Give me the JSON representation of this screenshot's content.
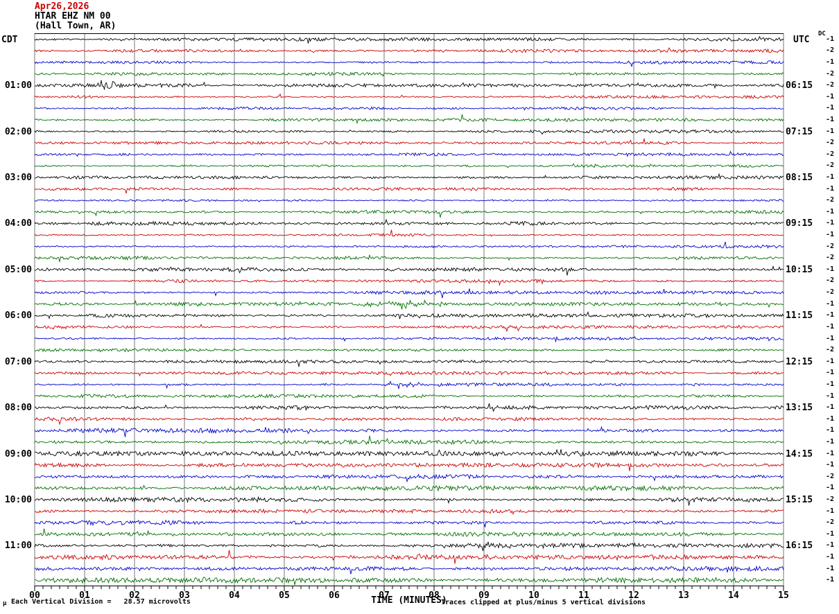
{
  "header": {
    "date": "Apr26,2026",
    "station": "HTAR EHZ NM 00",
    "location": "(Hall Town, AR)"
  },
  "axes": {
    "left_label": "CDT",
    "right_label": "UTC",
    "dc_label": "DC",
    "x_title": "TIME (MINUTES)",
    "x_ticks": [
      "00",
      "01",
      "02",
      "03",
      "04",
      "05",
      "06",
      "07",
      "08",
      "09",
      "10",
      "11",
      "12",
      "13",
      "14",
      "15"
    ],
    "footer_glyph": "μ",
    "footer_left": "Each Vertical Division =   28.57 microvolts",
    "footer_right": "Traces clipped at plus/minus 5 vertical divisions"
  },
  "colors": {
    "date_color": "#cc0000",
    "grid": "#777777",
    "axis": "#000000",
    "trace_cycle": [
      "#000000",
      "#cc0000",
      "#0000cc",
      "#007000"
    ]
  },
  "chart_data": {
    "type": "line",
    "subtype": "helicorder-seismogram",
    "title": "HTAR EHZ NM 00 (Hall Town, AR) Apr26,2026",
    "xlabel": "TIME (MINUTES)",
    "x_range_minutes": [
      0,
      15
    ],
    "minutes_per_row": 15,
    "grid": "vertical-every-minute",
    "tick_seconds_minor": 10,
    "rows": [
      {
        "dc": -1,
        "noise": 1.6,
        "left": "",
        "right": ""
      },
      {
        "dc": -2,
        "noise": 1.5,
        "left": "",
        "right": ""
      },
      {
        "dc": -1,
        "noise": 1.4,
        "left": "",
        "right": ""
      },
      {
        "dc": -2,
        "noise": 1.5,
        "left": "",
        "right": ""
      },
      {
        "dc": -2,
        "noise": 1.6,
        "left": "01:00",
        "right": "06:15"
      },
      {
        "dc": -1,
        "noise": 1.4,
        "left": "",
        "right": ""
      },
      {
        "dc": -1,
        "noise": 1.3,
        "left": "",
        "right": ""
      },
      {
        "dc": -1,
        "noise": 1.4,
        "left": "",
        "right": ""
      },
      {
        "dc": -1,
        "noise": 1.5,
        "left": "02:00",
        "right": "07:15"
      },
      {
        "dc": -2,
        "noise": 1.3,
        "left": "",
        "right": ""
      },
      {
        "dc": -2,
        "noise": 1.4,
        "left": "",
        "right": ""
      },
      {
        "dc": -2,
        "noise": 1.5,
        "left": "",
        "right": ""
      },
      {
        "dc": -1,
        "noise": 1.5,
        "left": "03:00",
        "right": "08:15"
      },
      {
        "dc": -1,
        "noise": 1.4,
        "left": "",
        "right": ""
      },
      {
        "dc": -2,
        "noise": 1.3,
        "left": "",
        "right": ""
      },
      {
        "dc": -1,
        "noise": 1.4,
        "left": "",
        "right": ""
      },
      {
        "dc": -1,
        "noise": 1.8,
        "left": "04:00",
        "right": "09:15"
      },
      {
        "dc": -1,
        "noise": 1.5,
        "left": "",
        "right": ""
      },
      {
        "dc": -2,
        "noise": 1.6,
        "left": "",
        "right": ""
      },
      {
        "dc": -2,
        "noise": 1.6,
        "left": "",
        "right": ""
      },
      {
        "dc": -1,
        "noise": 1.7,
        "left": "05:00",
        "right": "10:15"
      },
      {
        "dc": -2,
        "noise": 1.5,
        "left": "",
        "right": ""
      },
      {
        "dc": -2,
        "noise": 1.5,
        "left": "",
        "right": ""
      },
      {
        "dc": -1,
        "noise": 1.6,
        "left": "",
        "right": ""
      },
      {
        "dc": -1,
        "noise": 1.7,
        "left": "06:00",
        "right": "11:15"
      },
      {
        "dc": -1,
        "noise": 1.5,
        "left": "",
        "right": ""
      },
      {
        "dc": -1,
        "noise": 1.4,
        "left": "",
        "right": ""
      },
      {
        "dc": -2,
        "noise": 1.5,
        "left": "",
        "right": ""
      },
      {
        "dc": -1,
        "noise": 1.5,
        "left": "07:00",
        "right": "12:15"
      },
      {
        "dc": -1,
        "noise": 1.4,
        "left": "",
        "right": ""
      },
      {
        "dc": -1,
        "noise": 1.5,
        "left": "",
        "right": ""
      },
      {
        "dc": -1,
        "noise": 1.6,
        "left": "",
        "right": ""
      },
      {
        "dc": -1,
        "noise": 1.9,
        "left": "08:00",
        "right": "13:15"
      },
      {
        "dc": -1,
        "noise": 2.0,
        "left": "",
        "right": ""
      },
      {
        "dc": -1,
        "noise": 2.1,
        "left": "",
        "right": ""
      },
      {
        "dc": -1,
        "noise": 2.0,
        "left": "",
        "right": ""
      },
      {
        "dc": -1,
        "noise": 2.2,
        "left": "09:00",
        "right": "14:15"
      },
      {
        "dc": -1,
        "noise": 2.1,
        "left": "",
        "right": ""
      },
      {
        "dc": -2,
        "noise": 2.0,
        "left": "",
        "right": ""
      },
      {
        "dc": -1,
        "noise": 2.2,
        "left": "",
        "right": ""
      },
      {
        "dc": -2,
        "noise": 2.2,
        "left": "10:00",
        "right": "15:15"
      },
      {
        "dc": -1,
        "noise": 2.0,
        "left": "",
        "right": ""
      },
      {
        "dc": -2,
        "noise": 2.1,
        "left": "",
        "right": ""
      },
      {
        "dc": -1,
        "noise": 2.1,
        "left": "",
        "right": ""
      },
      {
        "dc": -1,
        "noise": 2.3,
        "left": "11:00",
        "right": "16:15"
      },
      {
        "dc": -1,
        "noise": 2.2,
        "left": "",
        "right": ""
      },
      {
        "dc": -1,
        "noise": 2.2,
        "left": "",
        "right": ""
      },
      {
        "dc": -1,
        "noise": 2.4,
        "left": "",
        "right": ""
      }
    ],
    "events": [
      {
        "name": "quake-0100-cdt",
        "row": 4,
        "start": 1.05,
        "peak": 1.3,
        "end": 2.7,
        "amp": 8.0,
        "gate": 0.85
      },
      {
        "name": "quake-0100-aftershock",
        "row": 4,
        "start": 1.9,
        "peak": 2.05,
        "end": 2.55,
        "amp": 4.0,
        "gate": 0.8
      },
      {
        "name": "green-row-edge-noise",
        "row": 3,
        "start": 14.2,
        "peak": 14.8,
        "end": 15.0,
        "amp": 2.5,
        "gate": 0.8
      },
      {
        "name": "spike-0500-black",
        "row": 20,
        "start": 6.1,
        "peak": 6.2,
        "end": 6.35,
        "amp": 4.0,
        "gate": 1.0
      },
      {
        "name": "burst-0545-green",
        "row": 23,
        "start": 5.95,
        "peak": 7.4,
        "end": 9.1,
        "amp": 9.0,
        "gate": 0.3
      },
      {
        "name": "burst-0730-blue",
        "row": 30,
        "start": 6.35,
        "peak": 7.3,
        "end": 8.7,
        "amp": 6.5,
        "gate": 0.35
      },
      {
        "name": "burst-0800-black",
        "row": 32,
        "start": 8.92,
        "peak": 9.05,
        "end": 10.0,
        "amp": 5.0,
        "gate": 0.5
      }
    ]
  }
}
